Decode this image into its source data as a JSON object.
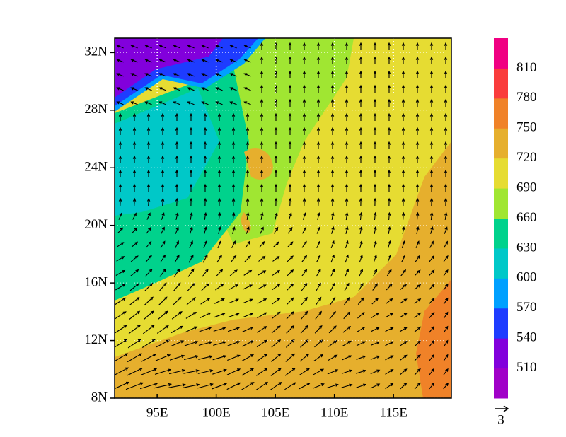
{
  "map": {
    "xlim": [
      91.4,
      119.9
    ],
    "ylim": [
      8,
      33
    ],
    "lon_ticks": [
      {
        "value": 95,
        "label": "95E"
      },
      {
        "value": 100,
        "label": "100E"
      },
      {
        "value": 105,
        "label": "105E"
      },
      {
        "value": 110,
        "label": "110E"
      },
      {
        "value": 115,
        "label": "115E"
      }
    ],
    "lat_ticks": [
      {
        "value": 8,
        "label": "8N"
      },
      {
        "value": 12,
        "label": "12N"
      },
      {
        "value": 16,
        "label": "16N"
      },
      {
        "value": 20,
        "label": "20N"
      },
      {
        "value": 24,
        "label": "24N"
      },
      {
        "value": 28,
        "label": "28N"
      },
      {
        "value": 32,
        "label": "32N"
      }
    ],
    "colorbar": {
      "levels": [
        510,
        540,
        570,
        600,
        630,
        660,
        690,
        720,
        750,
        780,
        810
      ],
      "colors": [
        "#a000c8",
        "#8200dc",
        "#1e3cff",
        "#00a0ff",
        "#00c8c8",
        "#00d28c",
        "#a0e632",
        "#e6dc32",
        "#e6af2d",
        "#f08228",
        "#fa3c3c",
        "#f00082"
      ]
    },
    "reference_vector": 3
  }
}
